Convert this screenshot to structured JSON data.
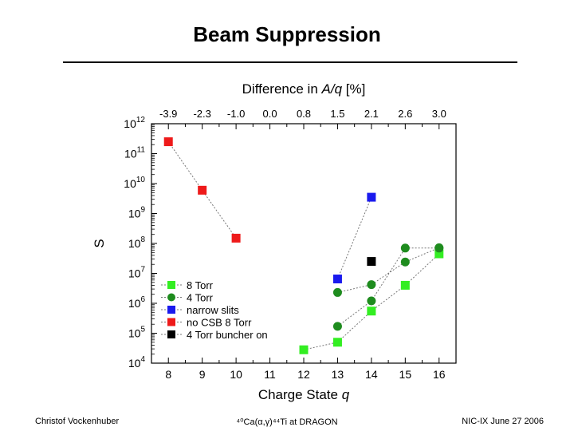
{
  "slide": {
    "title": "Beam Suppression",
    "footer_left": "Christof Vockenhuber",
    "footer_center": "⁴⁰Ca(α,γ)⁴⁴Ti at DRAGON",
    "footer_right": "NIC-IX June 27 2006"
  },
  "chart_data": {
    "type": "scatter",
    "xlabel": "Charge State q",
    "x2label": "Difference in A/q [%]",
    "ylabel": "S",
    "xlim": [
      7.5,
      16.5
    ],
    "x_ticks": [
      8,
      9,
      10,
      11,
      12,
      13,
      14,
      15,
      16
    ],
    "x2_ticks": [
      "-3.9",
      "-2.3",
      "-1.0",
      "0.0",
      "0.8",
      "1.5",
      "2.1",
      "2.6",
      "3.0"
    ],
    "y_scale": "log",
    "ylim_exponents": [
      4,
      12
    ],
    "y_tick_exponents": [
      4,
      5,
      6,
      7,
      8,
      9,
      10,
      11,
      12
    ],
    "y_tick_base": "10",
    "legend_position": "bottom-left",
    "series": [
      {
        "name": "8 Torr",
        "color": "#33ee22",
        "marker": "square",
        "connected": true,
        "points": [
          [
            12,
            28000
          ],
          [
            13,
            50000
          ],
          [
            14,
            550000
          ],
          [
            15,
            4000000
          ],
          [
            16,
            45000000
          ]
        ]
      },
      {
        "name": "4 Torr",
        "color": "#1e8c1e",
        "marker": "circle",
        "connected": true,
        "points": [
          [
            13,
            170000
          ],
          [
            14,
            1200000
          ],
          [
            15,
            70000000
          ],
          [
            16,
            70000000
          ]
        ]
      },
      {
        "name": "4 Torr",
        "color": "#1e8c1e",
        "marker": "circle",
        "connected": true,
        "legend": false,
        "points": [
          [
            13,
            2300000
          ],
          [
            14,
            4200000
          ],
          [
            15,
            24000000
          ],
          [
            16,
            72000000
          ]
        ]
      },
      {
        "name": "narrow slits",
        "color": "#1a1aee",
        "marker": "square",
        "connected": true,
        "points": [
          [
            13,
            6500000
          ],
          [
            14,
            3500000000
          ]
        ]
      },
      {
        "name": "no CSB 8 Torr",
        "color": "#ee1a1a",
        "marker": "square",
        "connected": true,
        "points": [
          [
            8,
            250000000000
          ],
          [
            9,
            6000000000
          ],
          [
            10,
            150000000
          ]
        ]
      },
      {
        "name": "4 Torr buncher on",
        "color": "#000000",
        "marker": "square",
        "connected": false,
        "points": [
          [
            14,
            25000000
          ]
        ]
      }
    ]
  }
}
